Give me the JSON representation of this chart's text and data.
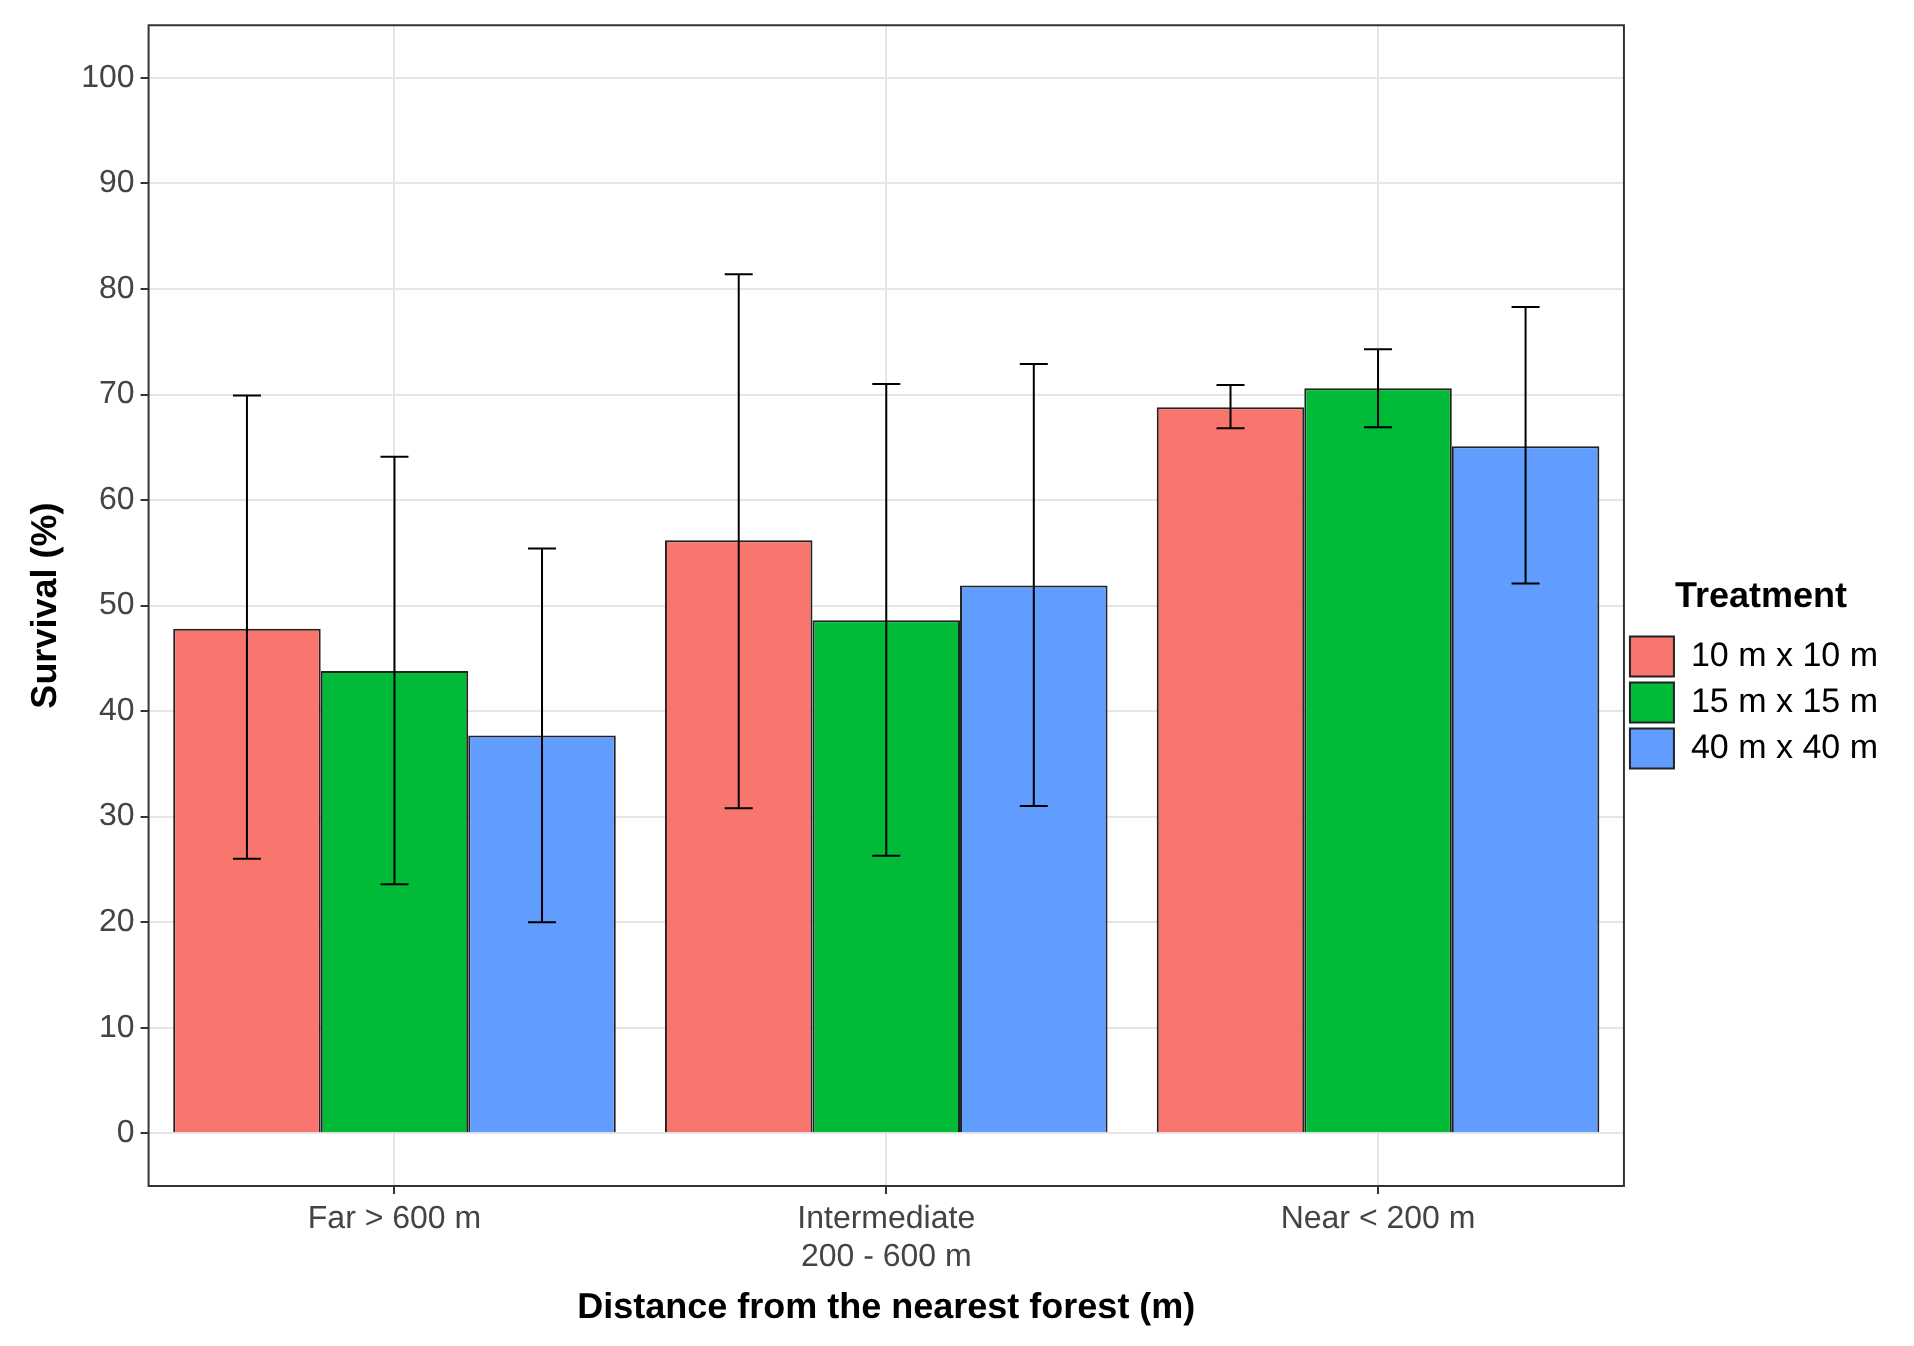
{
  "chart_data": {
    "type": "bar",
    "xlabel": "Distance from the nearest forest (m)",
    "ylabel": "Survival (%)",
    "legend_title": "Treatment",
    "legend": "right",
    "grid": true,
    "categories": [
      "Far > 600 m",
      "Intermediate\n200 - 600 m",
      "Near < 200 m"
    ],
    "ylim": [
      -5,
      105
    ],
    "yticks": [
      0,
      10,
      20,
      30,
      40,
      50,
      60,
      70,
      80,
      90,
      100
    ],
    "series": [
      {
        "name": "10 m x 10 m",
        "color": "#f8766d",
        "values": [
          47.8,
          56.2,
          68.8
        ],
        "errors": [
          [
            26,
            69.9
          ],
          [
            30.8,
            81.4
          ],
          [
            66.8,
            70.9
          ]
        ]
      },
      {
        "name": "15 m x 15 m",
        "color": "#00ba38",
        "values": [
          43.8,
          48.6,
          70.6
        ],
        "errors": [
          [
            23.6,
            64.1
          ],
          [
            26.3,
            71
          ],
          [
            66.9,
            74.3
          ]
        ]
      },
      {
        "name": "40 m x 40 m",
        "color": "#619cff",
        "values": [
          37.7,
          51.9,
          65.1
        ],
        "errors": [
          [
            20,
            55.4
          ],
          [
            31,
            72.9
          ],
          [
            52.1,
            78.3
          ]
        ]
      }
    ]
  }
}
